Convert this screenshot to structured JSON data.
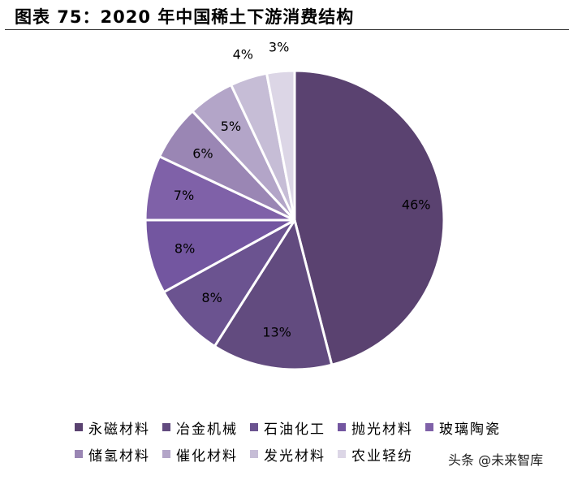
{
  "title": "图表 75：2020 年中国稀土下游消费结构",
  "watermark": "头条 @未来智库",
  "chart_data": {
    "type": "pie",
    "title": "图表 75：2020 年中国稀土下游消费结构",
    "start": "12 o'clock",
    "direction": "clockwise",
    "slices": [
      {
        "name": "永磁材料",
        "value": 46,
        "label": "46%",
        "color": "#5a4270"
      },
      {
        "name": "冶金机械",
        "value": 13,
        "label": "13%",
        "color": "#624b7f"
      },
      {
        "name": "石油化工",
        "value": 8,
        "label": "8%",
        "color": "#6b5390"
      },
      {
        "name": "抛光材料",
        "value": 8,
        "label": "8%",
        "color": "#7356a0"
      },
      {
        "name": "玻璃陶瓷",
        "value": 7,
        "label": "7%",
        "color": "#7f61a8"
      },
      {
        "name": "储氢材料",
        "value": 6,
        "label": "6%",
        "color": "#9a86b4"
      },
      {
        "name": "催化材料",
        "value": 5,
        "label": "5%",
        "color": "#b3a5c8"
      },
      {
        "name": "发光材料",
        "value": 4,
        "label": "4%",
        "color": "#c6bdd6"
      },
      {
        "name": "农业轻纺",
        "value": 3,
        "label": "3%",
        "color": "#dcd6e6"
      }
    ],
    "legend_position": "bottom"
  }
}
